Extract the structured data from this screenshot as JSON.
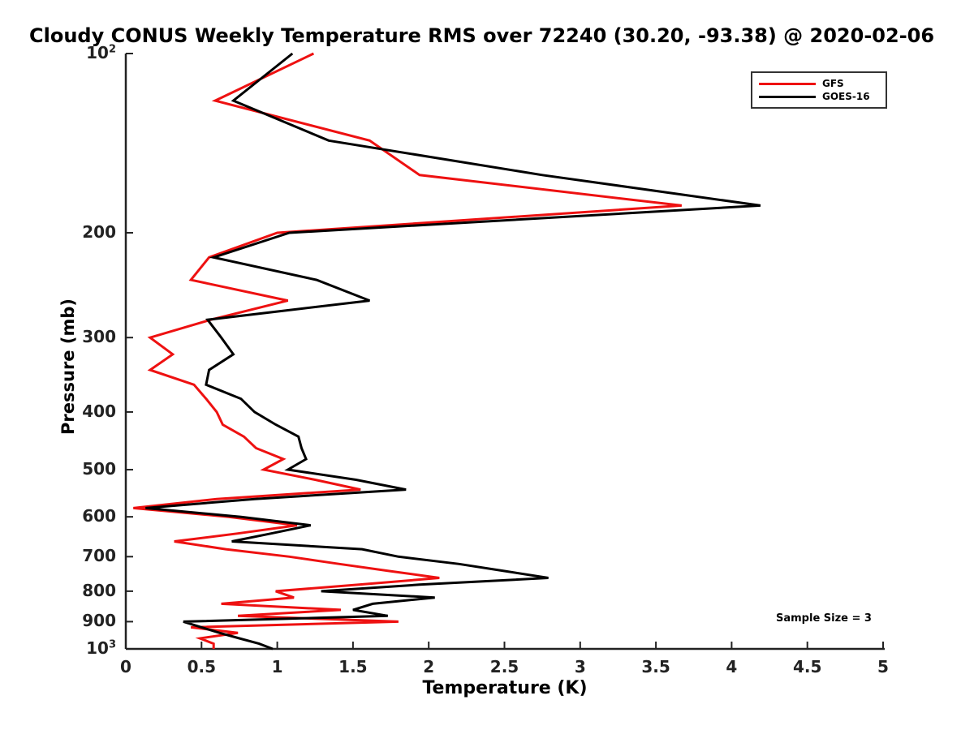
{
  "title": "Cloudy CONUS Weekly Temperature RMS over 72240 (30.20, -93.38) @ 2020-02-06",
  "annotations": {
    "sample_size": "Sample Size = 3"
  },
  "legend": {
    "position": "top-right",
    "entries": [
      {
        "label": "GFS",
        "color": "#ee1111"
      },
      {
        "label": "GOES-16",
        "color": "#000000"
      }
    ]
  },
  "colors": {
    "gfs": "#ee1111",
    "goes16": "#000000",
    "axis": "#222222",
    "background": "#ffffff"
  },
  "chart_data": {
    "type": "line",
    "title": "Cloudy CONUS Weekly Temperature RMS over 72240 (30.20, -93.38) @ 2020-02-06",
    "xlabel": "Temperature (K)",
    "ylabel": "Pressure (mb)",
    "xlim": [
      0,
      5
    ],
    "x_ticks": [
      0,
      0.5,
      1,
      1.5,
      2,
      2.5,
      3,
      3.5,
      4,
      4.5,
      5
    ],
    "x_tick_labels": [
      "0",
      "0.5",
      "1",
      "1.5",
      "2",
      "2.5",
      "3",
      "3.5",
      "4",
      "4.5",
      "5"
    ],
    "y_scale": "log",
    "ylim": [
      100,
      1000
    ],
    "y_axis_reversed_note": "pressure increases downward",
    "y_ticks": [
      100,
      200,
      300,
      400,
      500,
      600,
      700,
      800,
      900,
      1000
    ],
    "y_tick_labels": [
      "10^2",
      "200",
      "300",
      "400",
      "500",
      "600",
      "700",
      "800",
      "900",
      "10^3"
    ],
    "grid": false,
    "legend_position": "top-right",
    "pressure_mb": [
      100,
      120,
      140,
      160,
      180,
      200,
      220,
      240,
      260,
      280,
      300,
      320,
      340,
      360,
      380,
      400,
      420,
      440,
      460,
      480,
      500,
      520,
      540,
      560,
      580,
      600,
      620,
      640,
      660,
      680,
      700,
      720,
      740,
      760,
      780,
      800,
      820,
      840,
      860,
      880,
      900,
      920,
      940,
      960,
      980,
      1000
    ],
    "series": [
      {
        "name": "GFS",
        "color": "#ee1111",
        "rms_K": [
          1.24,
          0.59,
          1.61,
          1.94,
          3.67,
          1.0,
          0.55,
          0.43,
          1.07,
          0.56,
          0.16,
          0.31,
          0.16,
          0.45,
          0.53,
          0.6,
          0.64,
          0.78,
          0.86,
          1.04,
          0.91,
          1.25,
          1.55,
          0.6,
          0.05,
          0.68,
          1.13,
          0.74,
          0.32,
          0.66,
          1.08,
          1.41,
          1.74,
          2.07,
          1.54,
          0.99,
          1.11,
          0.63,
          1.42,
          0.74,
          1.8,
          0.43,
          0.74,
          0.49,
          0.58,
          0.58
        ]
      },
      {
        "name": "GOES-16",
        "color": "#000000",
        "rms_K": [
          1.1,
          0.71,
          1.34,
          2.75,
          4.19,
          1.08,
          0.58,
          1.26,
          1.61,
          0.54,
          0.63,
          0.71,
          0.55,
          0.53,
          0.76,
          0.85,
          0.99,
          1.14,
          1.16,
          1.19,
          1.07,
          1.52,
          1.85,
          0.85,
          0.13,
          0.76,
          1.22,
          0.96,
          0.7,
          1.56,
          1.8,
          2.2,
          2.5,
          2.79,
          1.94,
          1.29,
          2.04,
          1.63,
          1.5,
          1.73,
          0.38,
          0.5,
          0.62,
          0.75,
          0.88,
          0.97
        ]
      }
    ]
  }
}
